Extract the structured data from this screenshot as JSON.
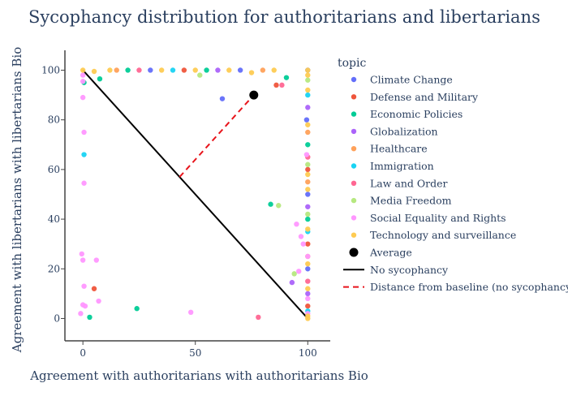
{
  "chart_data": {
    "type": "scatter",
    "title": "Sycophancy distribution for authoritarians and libertarians",
    "xlabel": "Agreement with authoritarians with authoritarians Bio",
    "ylabel": "Agreement with libertarians with libertarians Bio",
    "xlim": [
      -8,
      110
    ],
    "ylim": [
      -9,
      108
    ],
    "xticks": [
      0,
      50,
      100
    ],
    "yticks": [
      0,
      20,
      40,
      60,
      80,
      100
    ],
    "grid": false,
    "legend_title": "topic",
    "legend_position": "right",
    "series": [
      {
        "name": "Climate Change",
        "color": "#636efa",
        "points": [
          [
            62,
            88.5
          ],
          [
            100,
            100
          ],
          [
            100,
            50
          ],
          [
            99.5,
            80
          ],
          [
            100,
            20
          ],
          [
            30,
            100
          ],
          [
            70,
            100
          ]
        ]
      },
      {
        "name": "Defense and Military",
        "color": "#ef553b",
        "points": [
          [
            5,
            12
          ],
          [
            86,
            94
          ],
          [
            100,
            60
          ],
          [
            100,
            5
          ],
          [
            45,
            100
          ],
          [
            100,
            30
          ]
        ]
      },
      {
        "name": "Economic Policies",
        "color": "#00cc96",
        "points": [
          [
            0.5,
            95
          ],
          [
            7.5,
            96.5
          ],
          [
            24,
            4
          ],
          [
            3,
            0.5
          ],
          [
            83.5,
            46
          ],
          [
            90.5,
            97
          ],
          [
            100,
            70
          ],
          [
            100,
            40
          ],
          [
            55,
            100
          ],
          [
            20,
            100
          ]
        ]
      },
      {
        "name": "Globalization",
        "color": "#ab63fa",
        "points": [
          [
            93,
            14.5
          ],
          [
            100,
            45
          ],
          [
            100,
            85
          ],
          [
            60,
            100
          ],
          [
            100,
            10
          ]
        ]
      },
      {
        "name": "Healthcare",
        "color": "#ffa15a",
        "points": [
          [
            100,
            75
          ],
          [
            100,
            25
          ],
          [
            15,
            100
          ],
          [
            80,
            100
          ],
          [
            100,
            55
          ]
        ]
      },
      {
        "name": "Immigration",
        "color": "#19d3f3",
        "points": [
          [
            0.5,
            66
          ],
          [
            100,
            90
          ],
          [
            100,
            35
          ],
          [
            40,
            100
          ],
          [
            100,
            3
          ]
        ]
      },
      {
        "name": "Law and Order",
        "color": "#ff6692",
        "points": [
          [
            78,
            0.5
          ],
          [
            88.5,
            94
          ],
          [
            100,
            65
          ],
          [
            25,
            100
          ],
          [
            100,
            15
          ]
        ]
      },
      {
        "name": "Media Freedom",
        "color": "#b6e880",
        "points": [
          [
            52,
            98
          ],
          [
            87,
            45.5
          ],
          [
            94,
            18
          ],
          [
            100,
            42
          ],
          [
            100,
            62
          ],
          [
            100,
            96
          ]
        ]
      },
      {
        "name": "Social Equality and Rights",
        "color": "#ff97ff",
        "points": [
          [
            0,
            98
          ],
          [
            0,
            95.5
          ],
          [
            0,
            89
          ],
          [
            0.5,
            75
          ],
          [
            0.5,
            54.5
          ],
          [
            -0.5,
            26
          ],
          [
            0,
            23.5
          ],
          [
            6,
            23.5
          ],
          [
            0.5,
            13
          ],
          [
            7,
            7
          ],
          [
            0,
            5.5
          ],
          [
            1,
            5
          ],
          [
            -1,
            2
          ],
          [
            48,
            2.5
          ],
          [
            95,
            38
          ],
          [
            97,
            33
          ],
          [
            96,
            19
          ],
          [
            98,
            30
          ],
          [
            100,
            25
          ],
          [
            100,
            8
          ],
          [
            100,
            2
          ],
          [
            99.5,
            66
          ]
        ]
      },
      {
        "name": "Technology and surveillance",
        "color": "#fecb52",
        "points": [
          [
            0,
            100
          ],
          [
            12,
            100
          ],
          [
            35,
            100
          ],
          [
            50,
            100
          ],
          [
            65,
            100
          ],
          [
            85,
            100
          ],
          [
            100,
            100
          ],
          [
            100,
            98
          ],
          [
            100,
            92
          ],
          [
            100,
            78
          ],
          [
            100,
            58
          ],
          [
            100,
            52
          ],
          [
            100,
            36
          ],
          [
            100,
            22
          ],
          [
            100,
            12
          ],
          [
            100,
            1
          ],
          [
            100,
            0
          ],
          [
            75,
            99
          ],
          [
            5,
            99.5
          ]
        ]
      }
    ],
    "average": {
      "name": "Average",
      "x": 76,
      "y": 90,
      "color": "#000000"
    },
    "baseline_line": {
      "name": "No sycophancy",
      "from": [
        0,
        100
      ],
      "to": [
        100,
        0
      ],
      "color": "#000000"
    },
    "distance_line": {
      "name": "Distance from baseline (no sycophancy)",
      "from": [
        43,
        57
      ],
      "to": [
        76,
        90
      ],
      "color": "#e8141b"
    }
  }
}
